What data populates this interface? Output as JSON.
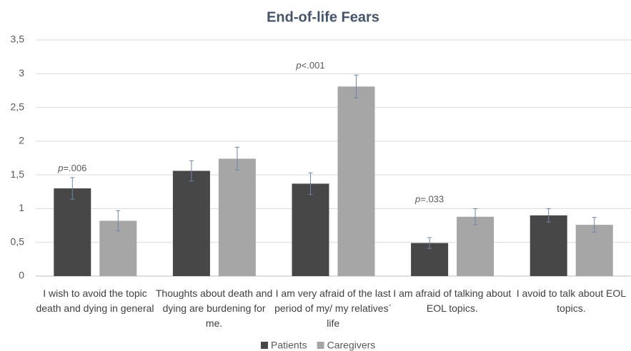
{
  "chart_data": {
    "type": "bar",
    "title": "End-of-life Fears",
    "categories": [
      "I wish to avoid the topic death and dying in general",
      "Thoughts about death and dying are burdening for me.",
      "I am very afraid of the last period of my/ my relatives´ life",
      "I am afraid of talking about EOL topics.",
      "I avoid to talk about EOL topics."
    ],
    "series": [
      {
        "name": "Patients",
        "color": "#474747",
        "values": [
          1.3,
          1.56,
          1.37,
          0.49,
          0.9
        ],
        "errors": [
          0.16,
          0.15,
          0.16,
          0.08,
          0.1
        ]
      },
      {
        "name": "Caregivers",
        "color": "#a6a6a6",
        "values": [
          0.82,
          1.74,
          2.81,
          0.88,
          0.76
        ],
        "errors": [
          0.15,
          0.17,
          0.17,
          0.12,
          0.11
        ]
      }
    ],
    "annotations": [
      "p=.006",
      null,
      "p<.001",
      "p=.033",
      null
    ],
    "ylim": [
      0,
      3.5
    ],
    "yticks": [
      0,
      {
        "value": 0.5,
        "label": "0,5"
      },
      1,
      {
        "value": 1.5,
        "label": "1,5"
      },
      2,
      {
        "value": 2.5,
        "label": "2,5"
      },
      3,
      {
        "value": 3.5,
        "label": "3,5"
      }
    ],
    "grid": true,
    "legend": "bottom"
  }
}
